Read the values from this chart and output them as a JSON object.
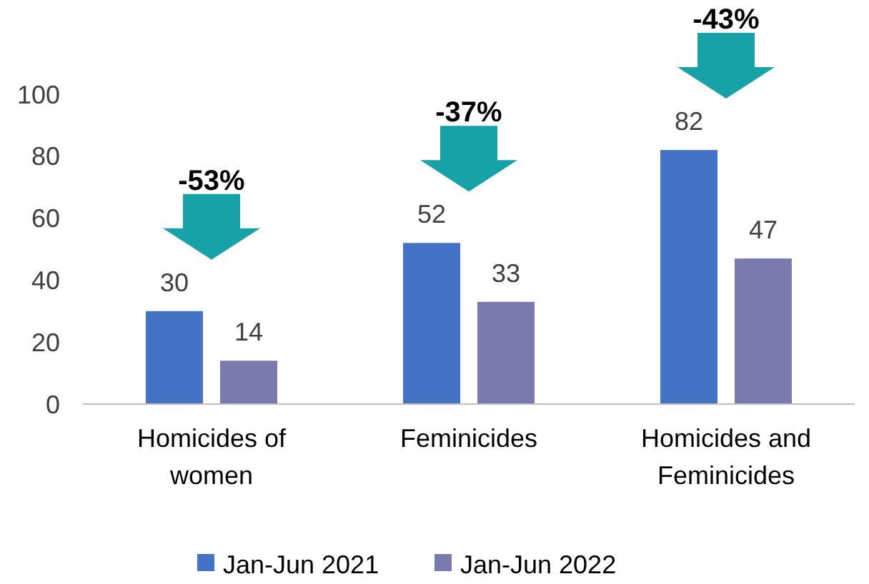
{
  "chart_data": {
    "type": "bar",
    "categories": [
      "Homicides of women",
      "Feminicides",
      "Homicides and Feminicides"
    ],
    "series": [
      {
        "name": "Jan-Jun 2021",
        "color": "#4472c4",
        "values": [
          30,
          52,
          82
        ]
      },
      {
        "name": "Jan-Jun 2022",
        "color": "#7a7aae",
        "values": [
          14,
          33,
          47
        ]
      }
    ],
    "ylim": [
      0,
      100
    ],
    "yticks": [
      0,
      20,
      40,
      60,
      80,
      100
    ],
    "data_labels": true,
    "grid": false,
    "legend": "bottom",
    "annotations": [
      "-53%",
      "-37%",
      "-43%"
    ]
  }
}
